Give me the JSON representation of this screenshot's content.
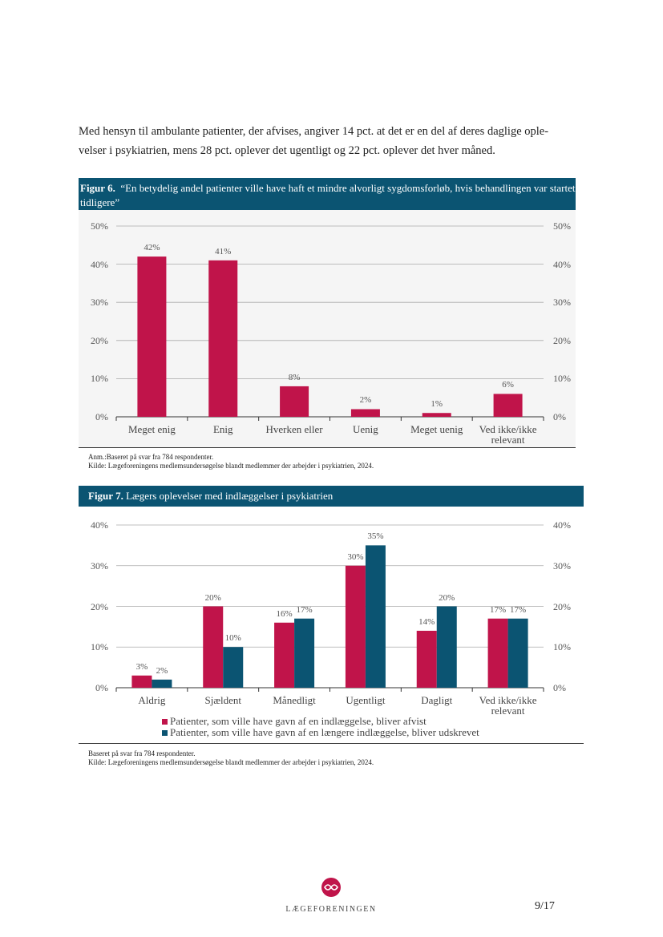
{
  "paragraph": [
    "Med hensyn til ambulante patienter, der afvises, angiver 14 pct. at det er en del af deres daglige ople-",
    "velser i psykiatrien, mens 28 pct. oplever det ugentligt og 22 pct. oplever det hver måned."
  ],
  "chart_data": [
    {
      "type": "bar",
      "figure_label": "Figur 6.",
      "title": "“En betydelig andel patienter ville have haft et mindre alvorligt sygdomsforløb, hvis behandlingen var startet tidligere”",
      "categories": [
        "Meget enig",
        "Enig",
        "Hverken eller",
        "Uenig",
        "Meget uenig",
        "Ved ikke/ikke relevant"
      ],
      "values": [
        42,
        41,
        8,
        2,
        1,
        6
      ],
      "value_labels": [
        "42%",
        "41%",
        "8%",
        "2%",
        "1%",
        "6%"
      ],
      "color": "#c0144a",
      "ylim": [
        0,
        50
      ],
      "yticks": [
        {
          "value": 0,
          "label": "0%"
        },
        {
          "value": 10,
          "label": "10%"
        },
        {
          "value": 20,
          "label": "20%"
        },
        {
          "value": 30,
          "label": "30%"
        },
        {
          "value": 40,
          "label": "40%"
        },
        {
          "value": 50,
          "label": "50%"
        }
      ],
      "grid": true,
      "notes": [
        "Anm.:Baseret på svar fra 784 respondenter.",
        "Kilde: Lægeforeningens medlemsundersøgelse blandt medlemmer der arbejder i psykiatrien, 2024."
      ]
    },
    {
      "type": "bar",
      "figure_label": "Figur 7.",
      "title": "Lægers oplevelser med indlæggelser i psykiatrien",
      "categories": [
        "Aldrig",
        "Sjældent",
        "Månedligt",
        "Ugentligt",
        "Dagligt",
        "Ved ikke/ikke relevant"
      ],
      "series": [
        {
          "name": "Patienter, som ville have gavn af en indlæggelse, bliver afvist",
          "color": "#c0144a",
          "values": [
            3,
            20,
            16,
            30,
            14,
            17
          ],
          "value_labels": [
            "3%",
            "20%",
            "16%",
            "30%",
            "14%",
            "17%"
          ]
        },
        {
          "name": "Patienter, som ville have gavn af en længere indlæggelse, bliver udskrevet",
          "color": "#0b5472",
          "values": [
            2,
            10,
            17,
            35,
            20,
            17
          ],
          "value_labels": [
            "2%",
            "10%",
            "17%",
            "35%",
            "20%",
            "17%"
          ]
        }
      ],
      "ylim": [
        0,
        40
      ],
      "yticks": [
        {
          "value": 0,
          "label": "0%"
        },
        {
          "value": 10,
          "label": "10%"
        },
        {
          "value": 20,
          "label": "20%"
        },
        {
          "value": 30,
          "label": "30%"
        },
        {
          "value": 40,
          "label": "40%"
        }
      ],
      "grid": true,
      "notes": [
        "Baseret på svar fra 784 respondenter.",
        "Kilde: Lægeforeningens medlemsundersøgelse blandt medlemmer der arbejder i psykiatrien, 2024."
      ]
    }
  ],
  "footer": {
    "logo_text": "LÆGEFORENINGEN",
    "page": "9/17"
  }
}
